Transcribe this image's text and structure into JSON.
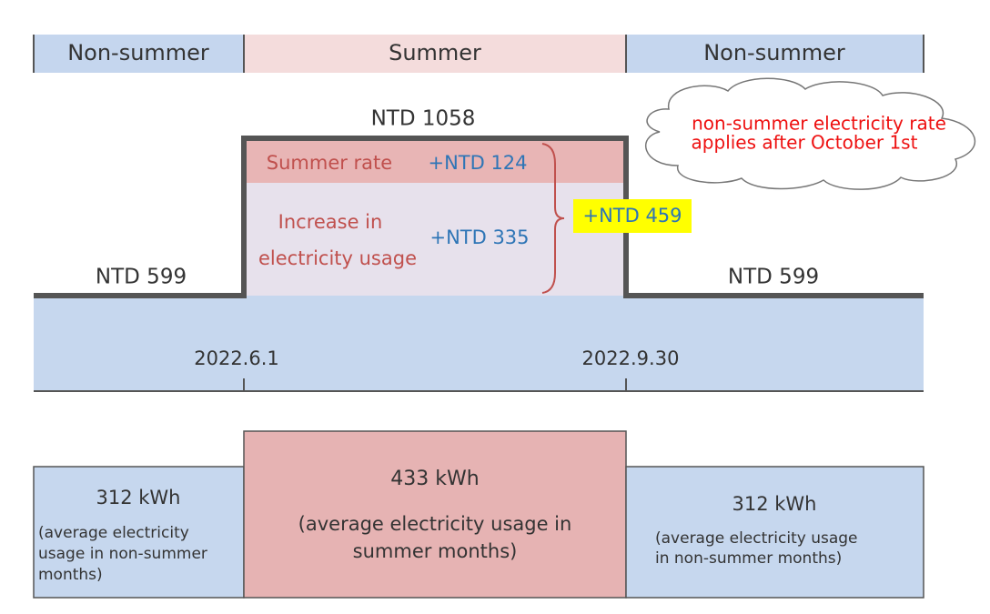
{
  "header": {
    "segments": [
      "Non-summer",
      "Summer",
      "Non-summer"
    ]
  },
  "bill": {
    "summer_total": "NTD 1058",
    "before": "NTD 599",
    "after": "NTD 599",
    "summer_rate": {
      "label": "Summer rate",
      "amount": "+NTD 124"
    },
    "usage_increase": {
      "label_lines": [
        "Increase in",
        "electricity usage"
      ],
      "amount": "+NTD 335"
    },
    "total_increase": "+NTD 459"
  },
  "note": {
    "lines": [
      "non-summer electricity rate",
      "applies after October 1st"
    ]
  },
  "dates": [
    "2022.6.1",
    "2022.9.30"
  ],
  "usage": [
    {
      "amount": "312 kWh",
      "lines": [
        "(average electricity",
        "usage in non-summer",
        "months)"
      ]
    },
    {
      "amount": "433 kWh",
      "lines": [
        "(average electricity usage in",
        "summer months)"
      ]
    },
    {
      "amount": "312 kWh",
      "lines": [
        "(average electricity usage",
        "in non-summer months)"
      ]
    }
  ]
}
